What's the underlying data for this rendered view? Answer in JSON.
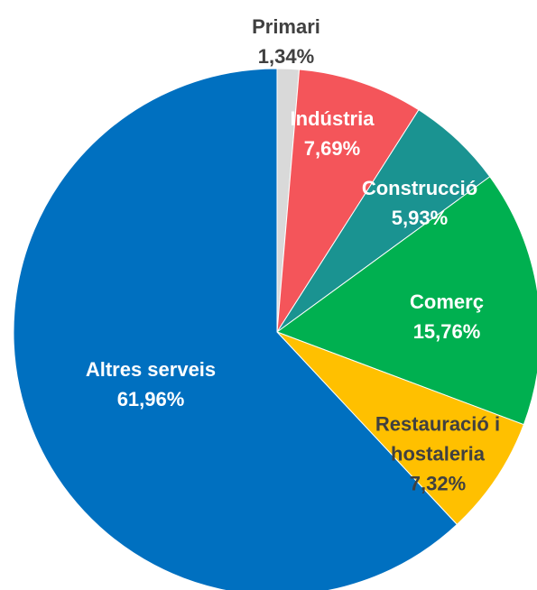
{
  "chart_data": {
    "type": "pie",
    "categories": [
      "Primari",
      "Indústria",
      "Construcció",
      "Comerç",
      "Restauració i hostaleria",
      "Altres serveis"
    ],
    "values": [
      1.34,
      7.69,
      5.93,
      15.76,
      7.32,
      61.96
    ],
    "value_labels": [
      "1,34%",
      "7,69%",
      "5,93%",
      "15,76%",
      "7,32%",
      "61,96%"
    ],
    "colors": [
      "#d9d9d9",
      "#f4555a",
      "#1a9391",
      "#00b050",
      "#ffc000",
      "#0070c0"
    ]
  }
}
